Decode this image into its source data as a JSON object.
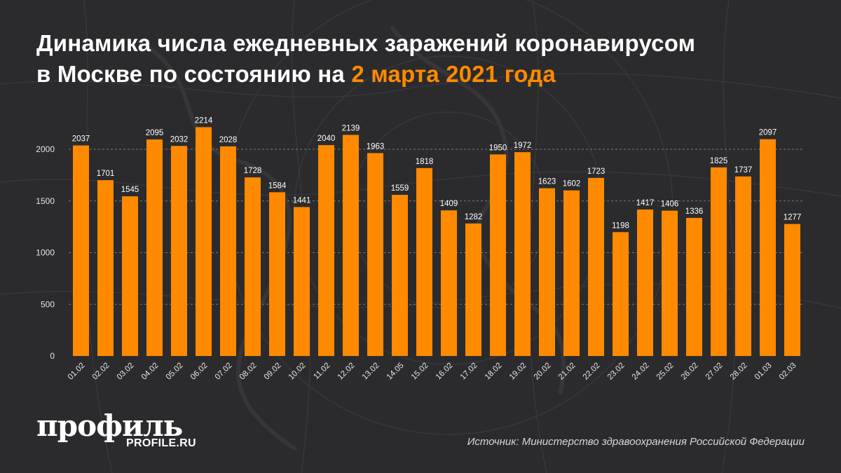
{
  "title": {
    "line1": "Динамика числа ежедневных заражений коронавирусом",
    "line2_prefix": "в Москве по состоянию на ",
    "line2_accent": "2 марта 2021 года"
  },
  "brand": {
    "logo": "профиль",
    "url": "PROFILE.RU"
  },
  "source": {
    "label": "Источник:",
    "text": "Министерство здравоохранения Российской Федерации"
  },
  "colors": {
    "background": "#2b2b2e",
    "bar": "#ff8a00",
    "accent": "#ff8a00",
    "text": "#ffffff",
    "gridline": "#7a7a7a"
  },
  "chart_data": {
    "type": "bar",
    "categories": [
      "01.02",
      "02.02",
      "03.02",
      "04.02",
      "05.02",
      "06.02",
      "07.02",
      "08.02",
      "09.02",
      "10.02",
      "11.02",
      "12.02",
      "13.02",
      "14.05",
      "15.02",
      "16.02",
      "17.02",
      "18.02",
      "19.02",
      "20.02",
      "21.02",
      "22.02",
      "23.02",
      "24.02",
      "25.02",
      "26.02",
      "27.02",
      "28.02",
      "01.03",
      "02.03"
    ],
    "values": [
      2037,
      1701,
      1545,
      2095,
      2032,
      2214,
      2028,
      1728,
      1584,
      1441,
      2040,
      2139,
      1963,
      1559,
      1818,
      1409,
      1282,
      1950,
      1972,
      1623,
      1602,
      1723,
      1198,
      1417,
      1406,
      1336,
      1825,
      1737,
      2097,
      1277
    ],
    "yticks": [
      0,
      500,
      1000,
      1500,
      2000
    ],
    "ylim": [
      0,
      2000
    ],
    "grid": true,
    "gridlines": [
      500,
      1000,
      1500,
      2000
    ],
    "data_labels": true,
    "xlabel": "",
    "ylabel": ""
  }
}
